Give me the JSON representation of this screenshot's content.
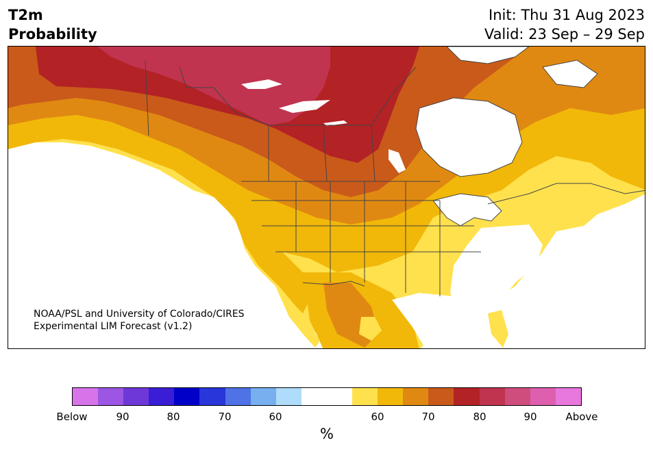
{
  "header": {
    "title_line1": "T2m",
    "title_line2": "Probability",
    "init": "Init: Thu 31 Aug 2023",
    "valid": "Valid: 23 Sep – 29 Sep"
  },
  "map": {
    "credit_line1": "NOAA/PSL and University of Colorado/CIRES",
    "credit_line2": "Experimental LIM Forecast (v1.2)",
    "colors": {
      "above_50_60": "#ffe14d",
      "above_60_65": "#f1b80a",
      "above_65_70": "#e08912",
      "above_70_75": "#c95a1a",
      "above_75_80": "#b32225",
      "above_80_85": "#c0344f",
      "water": "#ffffff",
      "near_normal": "#ffffff",
      "borders": "#444444"
    }
  },
  "colorbar": {
    "units": "%",
    "colors": [
      "#d774ea",
      "#9c56e3",
      "#6e38d9",
      "#3a1ed6",
      "#0000c8",
      "#2836da",
      "#4f72e6",
      "#77afef",
      "#b0dcfb",
      "#ffffff",
      "#ffffff",
      "#ffe14d",
      "#f1b80a",
      "#e08912",
      "#c95a1a",
      "#b32225",
      "#c0344f",
      "#cf4d7d",
      "#dd5fae",
      "#e877de"
    ],
    "ticks": {
      "below": "Below",
      "t90_low": "90",
      "t80_low": "80",
      "t70_low": "70",
      "t60_low": "60",
      "t60_high": "60",
      "t70_high": "70",
      "t80_high": "80",
      "t90_high": "90",
      "above": "Above"
    }
  }
}
